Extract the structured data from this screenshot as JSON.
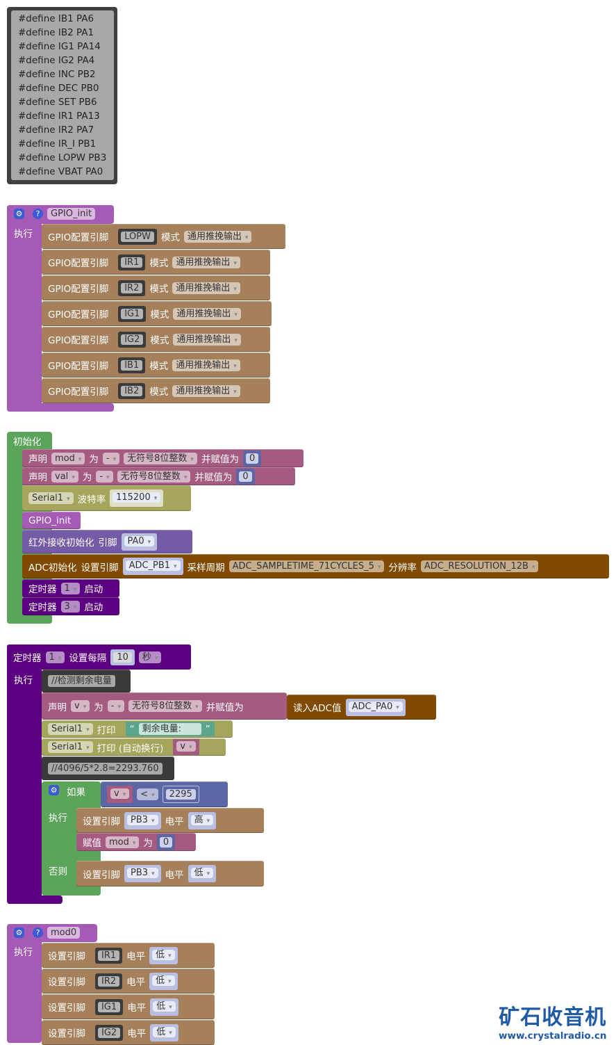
{
  "defines": [
    "#define IB1 PA6",
    "#define IB2 PA1",
    "#define IG1 PA14",
    "#define IG2 PA4",
    "#define INC PB2",
    "#define DEC PB0",
    "#define SET PB6",
    "#define IR1 PA13",
    "#define IR2 PA7",
    "#define IR_I PB1",
    "#define LOPW PB3",
    "#define VBAT PA0"
  ],
  "gpio_init": {
    "name": "GPIO_init",
    "exec_label": "执行",
    "rows": [
      {
        "label": "GPIO配置引脚",
        "pin": "LOPW",
        "mode_label": "模式",
        "mode": "通用推挽输出"
      },
      {
        "label": "GPIO配置引脚",
        "pin": "IR1",
        "mode_label": "模式",
        "mode": "通用推挽输出"
      },
      {
        "label": "GPIO配置引脚",
        "pin": "IR2",
        "mode_label": "模式",
        "mode": "通用推挽输出"
      },
      {
        "label": "GPIO配置引脚",
        "pin": "IG1",
        "mode_label": "模式",
        "mode": "通用推挽输出"
      },
      {
        "label": "GPIO配置引脚",
        "pin": "IG2",
        "mode_label": "模式",
        "mode": "通用推挽输出"
      },
      {
        "label": "GPIO配置引脚",
        "pin": "IB1",
        "mode_label": "模式",
        "mode": "通用推挽输出"
      },
      {
        "label": "GPIO配置引脚",
        "pin": "IB2",
        "mode_label": "模式",
        "mode": "通用推挽输出"
      }
    ]
  },
  "init": {
    "title": "初始化",
    "declares": [
      {
        "decl": "声明",
        "var": "mod",
        "as": "为",
        "dash": "-",
        "type": "无符号8位整数",
        "assign": "并赋值为",
        "value": "0"
      },
      {
        "decl": "声明",
        "var": "val",
        "as": "为",
        "dash": "-",
        "type": "无符号8位整数",
        "assign": "并赋值为",
        "value": "0"
      }
    ],
    "serial": {
      "port": "Serial1",
      "baud_label": "波特率",
      "baud": "115200"
    },
    "call": "GPIO_init",
    "ir": {
      "label": "红外接收初始化",
      "pin_label": "引脚",
      "pin": "PA0"
    },
    "adc": {
      "label": "ADC初始化",
      "pin_label": "设置引脚",
      "pin": "ADC_PB1",
      "sample_label": "采样周期",
      "sample": "ADC_SAMPLETIME_71CYCLES_5",
      "res_label": "分辨率",
      "res": "ADC_RESOLUTION_12B"
    },
    "timers": [
      {
        "label": "定时器",
        "num": "1",
        "start": "启动"
      },
      {
        "label": "定时器",
        "num": "3",
        "start": "启动"
      }
    ]
  },
  "timer": {
    "label": "定时器",
    "num": "1",
    "every": "设置每隔",
    "value": "10",
    "unit": "秒",
    "exec": "执行",
    "comment1": "//检测剩余电量",
    "declare": {
      "decl": "声明",
      "var": "v",
      "as": "为",
      "dash": "-",
      "type": "无符号8位整数",
      "assign": "并赋值为",
      "adc_label": "读入ADC值",
      "adc_pin": "ADC_PA0"
    },
    "print1": {
      "port": "Serial1",
      "label": "打印",
      "open_quote": "“",
      "text": "剩余电量:",
      "close_quote": "”"
    },
    "print2": {
      "port": "Serial1",
      "label": "打印 (自动换行)",
      "var": "v"
    },
    "comment2": "//4096/5*2.8=2293.760",
    "if": {
      "if_label": "如果",
      "var": "v",
      "op": "<",
      "value": "2295",
      "exec": "执行",
      "else": "否则",
      "set": {
        "label": "设置引脚",
        "pin": "PB3",
        "level_label": "电平",
        "level": "高"
      },
      "assign": {
        "label": "赋值",
        "var": "mod",
        "as": "为",
        "value": "0"
      },
      "set_else": {
        "label": "设置引脚",
        "pin": "PB3",
        "level_label": "电平",
        "level": "低"
      }
    }
  },
  "mod0": {
    "name": "mod0",
    "exec": "执行",
    "rows": [
      {
        "label": "设置引脚",
        "pin": "IR1",
        "level_label": "电平",
        "level": "低"
      },
      {
        "label": "设置引脚",
        "pin": "IR2",
        "level_label": "电平",
        "level": "低"
      },
      {
        "label": "设置引脚",
        "pin": "IG1",
        "level_label": "电平",
        "level": "低"
      },
      {
        "label": "设置引脚",
        "pin": "IG2",
        "level_label": "电平",
        "level": "低"
      }
    ]
  },
  "logo": {
    "title": "矿石收音机",
    "url": "www.crystalradio.cn"
  },
  "colors": {
    "define": "#404040",
    "procedure": "#a55bb5",
    "gpio": "#a5805b",
    "variable": "#a55b80",
    "serial": "#a5a55b",
    "setup": "#5ba55b",
    "ir": "#745ba5",
    "adc": "#804a00",
    "timer": "#5c0082",
    "math": "#5b67a5",
    "text": "#5ba58c",
    "logo": "#1f5aa6"
  }
}
